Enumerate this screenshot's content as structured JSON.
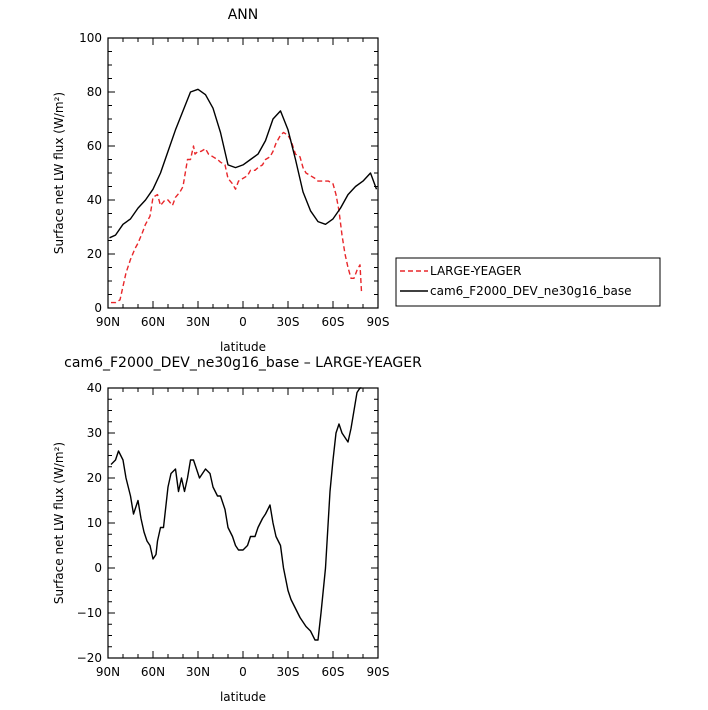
{
  "chart_data": [
    {
      "type": "line",
      "title": "ANN",
      "xlabel": "latitude",
      "ylabel": "Surface net LW flux (W/m²)",
      "xlim": [
        90,
        -90
      ],
      "ylim": [
        0,
        100
      ],
      "x_ticks": [
        {
          "value": 90,
          "label": "90N"
        },
        {
          "value": 60,
          "label": "60N"
        },
        {
          "value": 30,
          "label": "30N"
        },
        {
          "value": 0,
          "label": "0"
        },
        {
          "value": -30,
          "label": "30S"
        },
        {
          "value": -60,
          "label": "60S"
        },
        {
          "value": -90,
          "label": "90S"
        }
      ],
      "y_ticks": [
        0,
        20,
        40,
        60,
        80,
        100
      ],
      "legend_position": "right",
      "series": [
        {
          "name": "LARGE-YEAGER",
          "color": "#e8262a",
          "dash": "dashed",
          "lat": [
            88,
            85,
            82,
            80,
            78,
            75,
            72,
            70,
            67,
            65,
            62,
            60,
            57,
            55,
            52,
            50,
            47,
            45,
            42,
            40,
            37,
            35,
            33,
            32,
            30,
            28,
            25,
            23,
            20,
            17,
            15,
            12,
            10,
            7,
            5,
            3,
            0,
            -3,
            -5,
            -8,
            -10,
            -13,
            -15,
            -18,
            -20,
            -22,
            -25,
            -27,
            -30,
            -32,
            -35,
            -38,
            -40,
            -42,
            -45,
            -48,
            -50,
            -52,
            -55,
            -57,
            -60,
            -62,
            -64,
            -66,
            -68,
            -70,
            -72,
            -74,
            -76,
            -78,
            -79
          ],
          "values": [
            2,
            2,
            3,
            8,
            13,
            18,
            22,
            24,
            28,
            31,
            34,
            41,
            42,
            38,
            40,
            40,
            38,
            41,
            43,
            45,
            55,
            55,
            60,
            57,
            58,
            58,
            59,
            57,
            56,
            55,
            54,
            53,
            48,
            46,
            44,
            47,
            48,
            49,
            51,
            51,
            52,
            53,
            55,
            56,
            58,
            61,
            64,
            65,
            64,
            62,
            57,
            56,
            52,
            50,
            49,
            48,
            47,
            47,
            47,
            47,
            46,
            42,
            36,
            27,
            20,
            15,
            11,
            11,
            14,
            16,
            6
          ]
        },
        {
          "name": "cam6_F2000_DEV_ne30g16_base",
          "color": "#000000",
          "dash": "solid",
          "lat": [
            89,
            85,
            80,
            75,
            70,
            65,
            60,
            55,
            50,
            45,
            40,
            35,
            30,
            25,
            20,
            15,
            10,
            5,
            0,
            -5,
            -10,
            -15,
            -20,
            -25,
            -30,
            -35,
            -40,
            -45,
            -50,
            -55,
            -60,
            -65,
            -70,
            -75,
            -80,
            -85,
            -89
          ],
          "values": [
            26,
            27,
            31,
            33,
            37,
            40,
            44,
            50,
            58,
            66,
            73,
            80,
            81,
            79,
            74,
            65,
            53,
            52,
            53,
            55,
            57,
            62,
            70,
            73,
            66,
            55,
            43,
            36,
            32,
            31,
            33,
            37,
            42,
            45,
            47,
            50,
            44
          ]
        }
      ]
    },
    {
      "type": "line",
      "title": "cam6_F2000_DEV_ne30g16_base – LARGE-YEAGER",
      "xlabel": "latitude",
      "ylabel": "Surface net LW flux (W/m²)",
      "xlim": [
        90,
        -90
      ],
      "ylim": [
        -20,
        40
      ],
      "x_ticks": [
        {
          "value": 90,
          "label": "90N"
        },
        {
          "value": 60,
          "label": "60N"
        },
        {
          "value": 30,
          "label": "30N"
        },
        {
          "value": 0,
          "label": "0"
        },
        {
          "value": -30,
          "label": "30S"
        },
        {
          "value": -60,
          "label": "60S"
        },
        {
          "value": -90,
          "label": "90S"
        }
      ],
      "y_ticks": [
        -20,
        -10,
        0,
        10,
        20,
        30,
        40
      ],
      "series": [
        {
          "name": "",
          "color": "#000000",
          "dash": "solid",
          "lat": [
            88,
            85,
            83,
            80,
            78,
            75,
            73,
            70,
            68,
            66,
            64,
            62,
            60,
            58,
            57,
            55,
            53,
            50,
            48,
            45,
            43,
            41,
            39,
            37,
            35,
            33,
            31,
            29,
            27,
            25,
            22,
            20,
            17,
            15,
            12,
            10,
            7,
            5,
            3,
            0,
            -3,
            -5,
            -8,
            -10,
            -13,
            -15,
            -18,
            -20,
            -22,
            -25,
            -27,
            -30,
            -32,
            -35,
            -38,
            -40,
            -42,
            -45,
            -48,
            -50,
            -52,
            -55,
            -58,
            -60,
            -62,
            -64,
            -66,
            -68,
            -70,
            -72,
            -74,
            -76,
            -78,
            -79
          ],
          "values": [
            23,
            24,
            26,
            24,
            20,
            16,
            12,
            15,
            11,
            8,
            6,
            5,
            2,
            3,
            6,
            9,
            9,
            18,
            21,
            22,
            17,
            20,
            17,
            20,
            24,
            24,
            22,
            20,
            21,
            22,
            21,
            18,
            16,
            16,
            13,
            9,
            7,
            5,
            4,
            4,
            5,
            7,
            7,
            9,
            11,
            12,
            14,
            10,
            7,
            5,
            0,
            -5,
            -7,
            -9,
            -11,
            -12,
            -13,
            -14,
            -16,
            -16,
            -10,
            0,
            17,
            24,
            30,
            32,
            30,
            29,
            28,
            31,
            35,
            39,
            40,
            40
          ]
        }
      ]
    }
  ]
}
